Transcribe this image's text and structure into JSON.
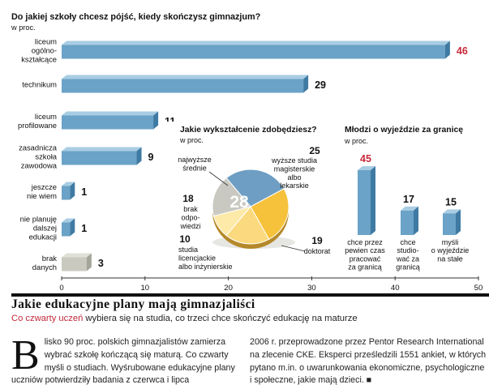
{
  "chart_data": [
    {
      "type": "bar",
      "orientation": "horizontal",
      "title": "Do jakiej szkoły chcesz pójść, kiedy skończysz gimnazjum?",
      "unit_label": "w proc.",
      "categories": [
        [
          "liceum",
          "ogólno-",
          "kształcące"
        ],
        [
          "technikum"
        ],
        [
          "liceum",
          "profilowane"
        ],
        [
          "zasadnicza",
          "szkoła",
          "zawodowa"
        ],
        [
          "jeszcze",
          "nie wiem"
        ],
        [
          "nie planuję",
          "dalszej",
          "edukacji"
        ],
        [
          "brak",
          "danych"
        ]
      ],
      "values": [
        46,
        29,
        11,
        9,
        1,
        1,
        3
      ],
      "value_labels": [
        "46",
        "29",
        "11",
        "9",
        "1",
        "1",
        "3"
      ],
      "xlim": [
        0,
        50
      ],
      "xticks": [
        "0",
        "10",
        "20",
        "30",
        "40",
        "50"
      ],
      "highlight_color": "#c8283a"
    },
    {
      "type": "pie",
      "title": "Jakie wykształcenie zdobędziesz?",
      "unit_label": "w proc.",
      "slices": [
        {
          "label": [
            "najwyższe",
            "średnie"
          ],
          "value": 28,
          "value_label": "28"
        },
        {
          "label": [
            "wyższe studia",
            "magisterskie",
            "albo",
            "lekarskie"
          ],
          "value": 25,
          "value_label": "25"
        },
        {
          "label": [
            "doktorat"
          ],
          "value": 19,
          "value_label": "19"
        },
        {
          "label": [
            "studia",
            "licencjackie",
            "albo inżynierskie"
          ],
          "value": 10,
          "value_label": "10"
        },
        {
          "label": [
            "brak",
            "odpo-",
            "wiedzi"
          ],
          "value": 18,
          "value_label": "18"
        }
      ]
    },
    {
      "type": "bar",
      "orientation": "vertical",
      "title": "Młodzi o wyjeździe za granicę",
      "unit_label": "w proc.",
      "categories": [
        [
          "chce przez",
          "pewien czas",
          "pracować",
          "za granicą"
        ],
        [
          "chce",
          "studio-",
          "wać za",
          "granicą"
        ],
        [
          "myśli",
          "o wyjeździe",
          "na stałe"
        ]
      ],
      "values": [
        45,
        17,
        15
      ],
      "value_labels": [
        "45",
        "17",
        "15"
      ],
      "ylim": [
        0,
        50
      ]
    }
  ],
  "article": {
    "headline": "Jakie edukacyjne plany mają gimnazjaliści",
    "subhead_highlight": "Co czwarty uczeń",
    "subhead_rest": " wybiera się na studia, co trzeci chce skończyć edukację na maturze",
    "dropcap": "B",
    "col1_text": "lisko 90 proc. polskich gimnazjalistów zamierza wybrać szkołę kończącą się maturą. Co czwarty myśli o studiach. Wyśrubowane edukacyjne plany uczniów potwierdziły badania z czerwca i lipca",
    "col2_text": "2006 r. przeprowadzone przez Pentor Research International na zlecenie CKE. Eksperci prześledzili 1551 ankiet, w których pytano m.in. o uwarunkowania ekonomiczne, psychologiczne i społeczne, jakie mają dzieci. ■"
  },
  "colors": {
    "bar_face": "#6ba2c7",
    "bar_top": "#a8cde3",
    "bar_side": "#3f7aa3",
    "accent_red": "#c8283a",
    "pie_blue": "#6e9ec3",
    "pie_gold": "#f6c23c",
    "pie_lightgold": "#fbd97e",
    "pie_cream": "#fde9a8",
    "pie_gray": "#c9c9c2",
    "gray_bar": "#c9c9bf"
  }
}
